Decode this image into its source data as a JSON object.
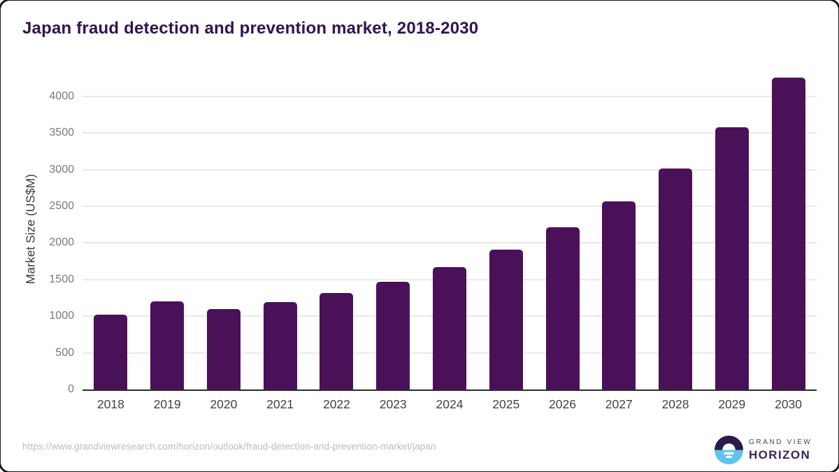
{
  "title": "Japan fraud detection and prevention market, 2018-2030",
  "chart_data": {
    "type": "bar",
    "categories": [
      "2018",
      "2019",
      "2020",
      "2021",
      "2022",
      "2023",
      "2024",
      "2025",
      "2026",
      "2027",
      "2028",
      "2029",
      "2030"
    ],
    "values": [
      1025,
      1205,
      1095,
      1190,
      1320,
      1470,
      1670,
      1910,
      2210,
      2570,
      3020,
      3580,
      4260
    ],
    "title": "Japan fraud detection and prevention market, 2018-2030",
    "xlabel": "",
    "ylabel": "Market Size (US$M)",
    "ylim": [
      0,
      4385
    ],
    "yticks": [
      0,
      500,
      1000,
      1500,
      2000,
      2500,
      3000,
      3500,
      4000
    ],
    "grid": true,
    "legend_position": "none",
    "bar_color": "#4a1158",
    "axis_line_color": "#2b2b2b",
    "gridline_color": "#e9e9e9"
  },
  "footer": {
    "source_url": "https://www.grandviewresearch.com/horizon/outlook/fraud-detection-and-prevention-market/japan",
    "logo": {
      "line1": "GRAND VIEW",
      "line2": "HORIZON",
      "icon": "horizon-sunrise-icon",
      "icon_purple": "#2d1b47",
      "icon_blue": "#5fc3ee"
    }
  }
}
